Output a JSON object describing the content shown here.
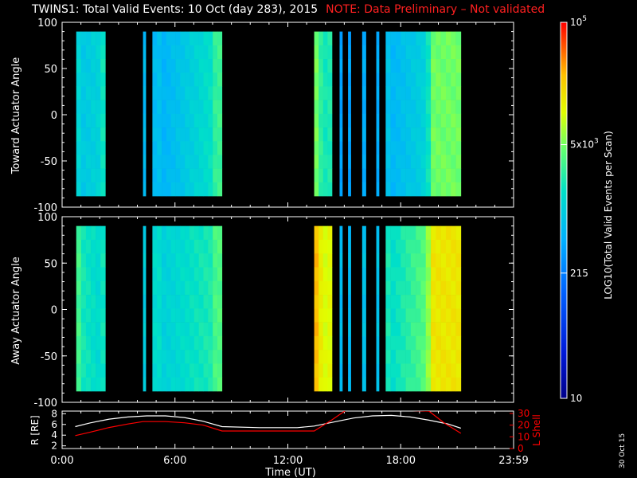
{
  "header": {
    "title": "TWINS1: Total Valid Events: 10 Oct (day 283), 2015",
    "note": "NOTE: Data Preliminary – Not validated"
  },
  "footer": {
    "date_stamp": "30 Oct 15"
  },
  "colors": {
    "background": "#000000",
    "axes": "#ffffff",
    "note": "#ff2020",
    "lshell": "#ff0000",
    "radius": "#ffffff"
  },
  "chart_data": [
    {
      "type": "heatmap",
      "panel": "top",
      "title": "TWINS1: Total Valid Events: 10 Oct (day 283), 2015",
      "xlabel": "Time (UT)",
      "ylabel": "Toward Actuator Angle",
      "xlim": [
        0,
        24
      ],
      "ylim": [
        -100,
        100
      ],
      "y_ticks": [
        "100",
        "50",
        "0",
        "-50",
        "-100"
      ],
      "angle_range": [
        -88,
        90
      ],
      "colorscale": "log",
      "z_range": [
        10,
        100000
      ],
      "segments": [
        {
          "start": 0.75,
          "end": 2.3,
          "level": 0.4,
          "edge": [
            0.55,
            0.65
          ]
        },
        {
          "start": 4.3,
          "end": 4.45,
          "level": 0.45
        },
        {
          "start": 4.8,
          "end": 8.5,
          "level": 0.36,
          "edge": [
            0.45,
            0.8
          ]
        },
        {
          "start": 13.4,
          "end": 14.35,
          "level": 0.6,
          "edge": [
            0.7,
            0.45
          ]
        },
        {
          "start": 14.75,
          "end": 14.9,
          "level": 0.4
        },
        {
          "start": 15.2,
          "end": 15.35,
          "level": 0.4
        },
        {
          "start": 15.95,
          "end": 16.15,
          "level": 0.42
        },
        {
          "start": 16.7,
          "end": 16.85,
          "level": 0.42
        },
        {
          "start": 17.2,
          "end": 19.6,
          "level": 0.4,
          "edge": [
            0.45,
            0.65
          ]
        },
        {
          "start": 19.6,
          "end": 21.2,
          "level": 0.67
        }
      ]
    },
    {
      "type": "heatmap",
      "panel": "middle",
      "xlabel": "Time (UT)",
      "ylabel": "Away Actuator Angle",
      "xlim": [
        0,
        24
      ],
      "ylim": [
        -100,
        100
      ],
      "y_ticks": [
        "100",
        "50",
        "0",
        "-50",
        "-100"
      ],
      "angle_range": [
        -88,
        90
      ],
      "colorscale": "log",
      "z_range": [
        10,
        100000
      ],
      "segments": [
        {
          "start": 0.75,
          "end": 2.3,
          "level": 0.48,
          "edge": [
            0.7,
            0.55
          ]
        },
        {
          "start": 4.3,
          "end": 4.45,
          "level": 0.5
        },
        {
          "start": 4.8,
          "end": 8.5,
          "level": 0.48,
          "edge": [
            0.5,
            0.72
          ]
        },
        {
          "start": 13.4,
          "end": 14.35,
          "level": 0.82,
          "edge": [
            0.85,
            0.6
          ]
        },
        {
          "start": 14.75,
          "end": 14.9,
          "level": 0.45
        },
        {
          "start": 15.2,
          "end": 15.35,
          "level": 0.45
        },
        {
          "start": 15.95,
          "end": 16.15,
          "level": 0.47
        },
        {
          "start": 16.7,
          "end": 16.85,
          "level": 0.47
        },
        {
          "start": 17.2,
          "end": 19.6,
          "level": 0.55,
          "edge": [
            0.5,
            0.78
          ]
        },
        {
          "start": 19.6,
          "end": 21.2,
          "level": 0.8
        }
      ]
    },
    {
      "type": "line",
      "panel": "bottom",
      "xlabel": "Time (UT)",
      "x_ticks": [
        "0:00",
        "6:00",
        "12:00",
        "18:00",
        "23:59"
      ],
      "y1label": "R [RE]",
      "y1lim": [
        1.5,
        8.5
      ],
      "y1_ticks": [
        "8",
        "6",
        "4",
        "2"
      ],
      "y2label": "L Shell",
      "y2lim": [
        0,
        32
      ],
      "y2_ticks": [
        "30",
        "20",
        "10",
        "0"
      ],
      "series": [
        {
          "name": "R",
          "axis": "y1",
          "x": [
            0.7,
            1.5,
            2.5,
            3.5,
            4.5,
            5.5,
            6.5,
            7.5,
            8.5,
            10.5,
            12.5,
            13.4,
            14.5,
            15.5,
            16.5,
            17.5,
            18.5,
            19.5,
            20.5,
            21.2
          ],
          "y": [
            5.6,
            6.3,
            7.0,
            7.4,
            7.6,
            7.6,
            7.3,
            6.6,
            5.6,
            5.4,
            5.4,
            5.7,
            6.5,
            7.2,
            7.6,
            7.7,
            7.4,
            6.8,
            6.1,
            5.3
          ]
        },
        {
          "name": "L Shell",
          "axis": "y2",
          "x": [
            0.7,
            1.5,
            2.5,
            3.5,
            4.3,
            5.5,
            6.5,
            7.5,
            8.5,
            10.5,
            12.5,
            13.4,
            14.3,
            15.2,
            19.5,
            20.3,
            21.2
          ],
          "y": [
            11,
            14,
            18,
            21,
            23,
            23,
            22,
            20,
            15,
            15,
            15,
            15,
            24,
            34,
            32,
            22,
            13
          ]
        }
      ]
    },
    {
      "type": "heatmap",
      "panel": "colorbar",
      "ylabel": "LOG10(Total Valid Events per Scan)",
      "colorscale": "log",
      "z_range": [
        10,
        100000
      ],
      "tick_labels": [
        "10",
        "215",
        "5x10^3",
        "10^5"
      ]
    }
  ]
}
